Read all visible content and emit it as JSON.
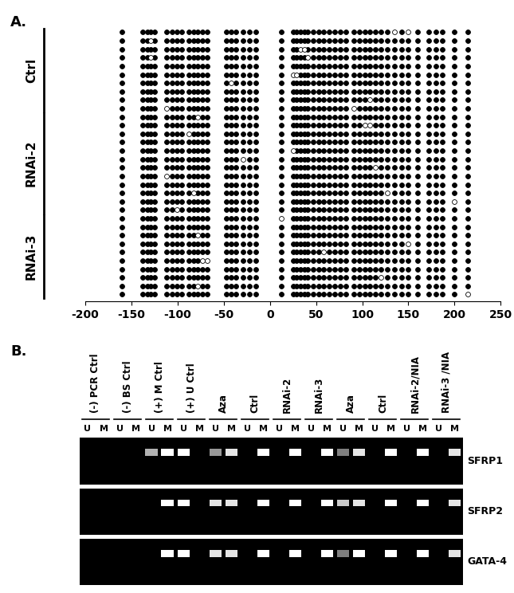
{
  "chart_data": {
    "type": "lollipop",
    "panel_label": "A.",
    "xlim": [
      -200,
      250
    ],
    "xticks": [
      -200,
      -150,
      -100,
      -50,
      0,
      50,
      100,
      150,
      200,
      250
    ],
    "tick_labels": "x",
    "cpg_positions": [
      -160,
      -138,
      -133,
      -129,
      -125,
      -112,
      -106,
      -101,
      -96,
      -88,
      -83,
      -78,
      -73,
      -68,
      -47,
      -42,
      -37,
      -29,
      -22,
      -15,
      12,
      25,
      29,
      33,
      37,
      41,
      47,
      53,
      58,
      64,
      70,
      76,
      82,
      91,
      97,
      103,
      108,
      114,
      120,
      127,
      135,
      143,
      150,
      160,
      172,
      180,
      187,
      200,
      214
    ],
    "groups": [
      {
        "name": "Ctrl",
        "unmethylated": [
          [
            135,
            150
          ],
          [
            -129
          ],
          [
            33,
            37
          ],
          [
            -129,
            41
          ],
          [],
          [
            25,
            29
          ],
          [
            -42
          ],
          [],
          [
            108
          ],
          [
            -112,
            91
          ]
        ]
      },
      {
        "name": "RNAi-2",
        "unmethylated": [
          [
            -78
          ],
          [
            103,
            108
          ],
          [
            -88
          ],
          [],
          [
            25
          ],
          [
            -29
          ],
          [
            114
          ],
          [
            -112
          ],
          [],
          [
            -83,
            127
          ],
          [
            200
          ],
          [
            -101
          ]
        ]
      },
      {
        "name": "RNAi-3",
        "unmethylated": [
          [
            12
          ],
          [],
          [
            -78
          ],
          [
            150
          ],
          [
            58
          ],
          [
            -73,
            -68
          ],
          [],
          [
            120
          ],
          [
            -78
          ],
          [
            214
          ]
        ]
      }
    ]
  },
  "gel": {
    "panel_label": "B.",
    "lanes": [
      "(-) PCR Ctrl",
      "(-) BS Ctrl",
      "(+) M Ctrl",
      "(+) U Ctrl",
      "Aza",
      "Ctrl",
      "RNAi-2",
      "RNAi-3",
      "Aza",
      "Ctrl",
      "RNAi-2/NIA",
      "RNAi-3 /NIA"
    ],
    "sublanes": [
      "U",
      "M"
    ],
    "genes": [
      {
        "name": "SFRP1",
        "bands": [
          [
            0,
            0
          ],
          [
            0,
            0
          ],
          [
            0.7,
            1
          ],
          [
            1,
            0
          ],
          [
            0.6,
            0.9
          ],
          [
            0,
            1
          ],
          [
            0,
            1
          ],
          [
            0,
            1
          ],
          [
            0.5,
            0.9
          ],
          [
            0,
            1
          ],
          [
            0,
            1
          ],
          [
            0,
            0.9
          ]
        ]
      },
      {
        "name": "SFRP2",
        "bands": [
          [
            0,
            0
          ],
          [
            0,
            0
          ],
          [
            0,
            1
          ],
          [
            1,
            0
          ],
          [
            0.9,
            0.9
          ],
          [
            0,
            1
          ],
          [
            0,
            1
          ],
          [
            0,
            1
          ],
          [
            0.8,
            0.9
          ],
          [
            0,
            1
          ],
          [
            0,
            1
          ],
          [
            0,
            0.9
          ]
        ]
      },
      {
        "name": "GATA-4",
        "bands": [
          [
            0,
            0
          ],
          [
            0,
            0
          ],
          [
            0,
            1
          ],
          [
            1,
            0
          ],
          [
            0.9,
            0.9
          ],
          [
            0,
            1
          ],
          [
            0,
            1
          ],
          [
            0,
            1
          ],
          [
            0.5,
            1
          ],
          [
            0,
            1
          ],
          [
            0,
            1
          ],
          [
            0,
            0.9
          ]
        ]
      }
    ]
  }
}
